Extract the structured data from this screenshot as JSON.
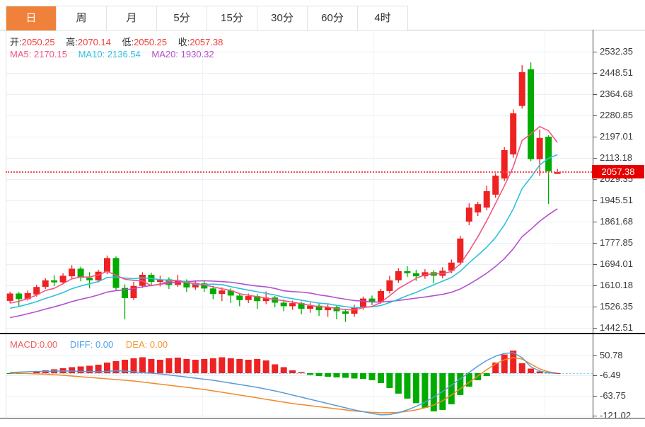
{
  "tabs": {
    "items": [
      {
        "label": "日",
        "active": true
      },
      {
        "label": "周",
        "active": false
      },
      {
        "label": "月",
        "active": false
      },
      {
        "label": "5分",
        "active": false
      },
      {
        "label": "15分",
        "active": false
      },
      {
        "label": "30分",
        "active": false
      },
      {
        "label": "60分",
        "active": false
      },
      {
        "label": "4时",
        "active": false
      }
    ]
  },
  "overlay": {
    "ohlc": {
      "o_label": "开:",
      "o": "2050.25",
      "h_label": "高:",
      "h": "2070.14",
      "l_label": "低:",
      "l": "2050.25",
      "c_label": "收:",
      "c": "2057.38"
    },
    "ma": {
      "ma5_label": "MA5:",
      "ma5": "2170.15",
      "ma10_label": "MA10:",
      "ma10": "2136.54",
      "ma20_label": "MA20:",
      "ma20": "1930.32"
    }
  },
  "macd_header": {
    "macd_label": "MACD:",
    "macd": "0.00",
    "diff_label": "DIFF:",
    "diff": "0.00",
    "dea_label": "DEA:",
    "dea": "0.00"
  },
  "price_tag": {
    "value": "2057.38"
  },
  "colors": {
    "up": "#ee2222",
    "down": "#00ac00",
    "ma5": "#f2567f",
    "ma10": "#2fc0dc",
    "ma20": "#b44fd0",
    "diff": "#5b9bd5",
    "dea": "#f08a28",
    "tag_bg": "#e60000",
    "tab_active": "#f0813a",
    "dotted_line": "#f34d4d",
    "zero_dash": "#9fd2e8"
  },
  "chart_data": [
    {
      "type": "candlestick",
      "title": "gold daily candles with MA5/MA10/MA20",
      "y_tick_labels": [
        "2532.35",
        "2448.51",
        "2364.68",
        "2280.85",
        "2197.01",
        "2113.18",
        "2029.35",
        "1945.51",
        "1861.68",
        "1777.85",
        "1694.01",
        "1610.18",
        "1526.35",
        "1442.51"
      ],
      "last_price": 2057.38,
      "ma_periods": [
        5,
        10,
        20
      ],
      "candles_ohlc": [
        [
          1549,
          1585,
          1540,
          1578
        ],
        [
          1578,
          1584,
          1528,
          1556
        ],
        [
          1556,
          1590,
          1550,
          1580
        ],
        [
          1574,
          1612,
          1566,
          1604
        ],
        [
          1604,
          1638,
          1596,
          1630
        ],
        [
          1630,
          1650,
          1608,
          1622
        ],
        [
          1622,
          1658,
          1614,
          1648
        ],
        [
          1646,
          1690,
          1638,
          1676
        ],
        [
          1676,
          1684,
          1626,
          1640
        ],
        [
          1640,
          1662,
          1598,
          1630
        ],
        [
          1630,
          1672,
          1622,
          1664
        ],
        [
          1664,
          1728,
          1654,
          1718
        ],
        [
          1718,
          1724,
          1588,
          1600
        ],
        [
          1600,
          1614,
          1476,
          1560
        ],
        [
          1560,
          1624,
          1552,
          1608
        ],
        [
          1608,
          1662,
          1600,
          1652
        ],
        [
          1652,
          1660,
          1608,
          1624
        ],
        [
          1624,
          1648,
          1606,
          1634
        ],
        [
          1634,
          1642,
          1596,
          1612
        ],
        [
          1612,
          1652,
          1604,
          1628
        ],
        [
          1628,
          1634,
          1584,
          1602
        ],
        [
          1602,
          1630,
          1592,
          1618
        ],
        [
          1618,
          1628,
          1584,
          1598
        ],
        [
          1598,
          1608,
          1556,
          1576
        ],
        [
          1576,
          1602,
          1548,
          1590
        ],
        [
          1590,
          1598,
          1540,
          1570
        ],
        [
          1570,
          1580,
          1528,
          1552
        ],
        [
          1552,
          1578,
          1540,
          1568
        ],
        [
          1568,
          1576,
          1518,
          1548
        ],
        [
          1548,
          1586,
          1536,
          1562
        ],
        [
          1562,
          1568,
          1524,
          1542
        ],
        [
          1542,
          1554,
          1508,
          1528
        ],
        [
          1528,
          1550,
          1514,
          1540
        ],
        [
          1540,
          1546,
          1496,
          1518
        ],
        [
          1518,
          1542,
          1502,
          1530
        ],
        [
          1530,
          1538,
          1490,
          1512
        ],
        [
          1512,
          1534,
          1486,
          1524
        ],
        [
          1524,
          1530,
          1476,
          1508
        ],
        [
          1508,
          1518,
          1466,
          1498
        ],
        [
          1498,
          1534,
          1486,
          1524
        ],
        [
          1524,
          1566,
          1514,
          1558
        ],
        [
          1558,
          1570,
          1532,
          1546
        ],
        [
          1546,
          1596,
          1538,
          1588
        ],
        [
          1588,
          1648,
          1578,
          1630
        ],
        [
          1630,
          1678,
          1620,
          1666
        ],
        [
          1666,
          1686,
          1644,
          1658
        ],
        [
          1658,
          1672,
          1628,
          1646
        ],
        [
          1646,
          1674,
          1636,
          1662
        ],
        [
          1662,
          1670,
          1618,
          1648
        ],
        [
          1648,
          1682,
          1638,
          1668
        ],
        [
          1668,
          1712,
          1658,
          1700
        ],
        [
          1700,
          1806,
          1692,
          1795
        ],
        [
          1862,
          1934,
          1848,
          1917
        ],
        [
          1898,
          1940,
          1884,
          1931
        ],
        [
          1917,
          2004,
          1906,
          1982
        ],
        [
          1968,
          2052,
          1956,
          2043
        ],
        [
          2032,
          2156,
          2022,
          2144
        ],
        [
          2127,
          2305,
          2114,
          2289
        ],
        [
          2318,
          2479,
          2308,
          2452
        ],
        [
          2463,
          2490,
          2100,
          2108
        ],
        [
          2108,
          2225,
          2043,
          2192
        ],
        [
          2197,
          2202,
          1931,
          2060
        ],
        [
          2050.25,
          2070.14,
          2050.25,
          2057.38
        ]
      ]
    },
    {
      "type": "bar",
      "title": "MACD histogram with DIFF/DEA lines",
      "y_tick_labels": [
        "50.78",
        "-6.49",
        "-63.75",
        "-121.02"
      ],
      "hist": [
        -2,
        -2,
        -1,
        4,
        8,
        11,
        14,
        17,
        19,
        21,
        24,
        30,
        34,
        38,
        42,
        45,
        40,
        38,
        42,
        44,
        40,
        38,
        40,
        42,
        45,
        42,
        40,
        38,
        40,
        36,
        25,
        17,
        8,
        3,
        -5,
        -8,
        -10,
        -12,
        -13,
        -15,
        -16,
        -20,
        -28,
        -42,
        -58,
        -72,
        -85,
        -98,
        -108,
        -104,
        -88,
        -62,
        -38,
        -20,
        -8,
        30,
        53,
        64,
        28,
        13,
        5,
        2,
        0
      ],
      "diff": [
        2,
        3,
        4,
        5,
        5,
        6,
        6,
        6,
        5,
        5,
        4,
        5,
        7,
        6,
        4,
        2,
        0,
        -2,
        -5,
        -8,
        -11,
        -14,
        -17,
        -20,
        -24,
        -28,
        -32,
        -36,
        -40,
        -45,
        -50,
        -56,
        -62,
        -68,
        -74,
        -80,
        -86,
        -92,
        -98,
        -104,
        -109,
        -114,
        -118,
        -117,
        -112,
        -104,
        -94,
        -82,
        -68,
        -52,
        -34,
        -16,
        2,
        20,
        36,
        48,
        56,
        58,
        44,
        18,
        6,
        1,
        0
      ],
      "dea": [
        0,
        0,
        -1,
        -2,
        -3,
        -4,
        -6,
        -8,
        -10,
        -12,
        -14,
        -16,
        -18,
        -20,
        -22,
        -25,
        -28,
        -31,
        -34,
        -37,
        -40,
        -43,
        -46,
        -50,
        -54,
        -58,
        -62,
        -66,
        -70,
        -74,
        -78,
        -82,
        -86,
        -89,
        -92,
        -95,
        -98,
        -101,
        -104,
        -107,
        -109,
        -111,
        -112,
        -112,
        -111,
        -108,
        -104,
        -98,
        -90,
        -78,
        -62,
        -44,
        -26,
        -8,
        10,
        26,
        38,
        44,
        40,
        26,
        12,
        4,
        0
      ]
    }
  ]
}
